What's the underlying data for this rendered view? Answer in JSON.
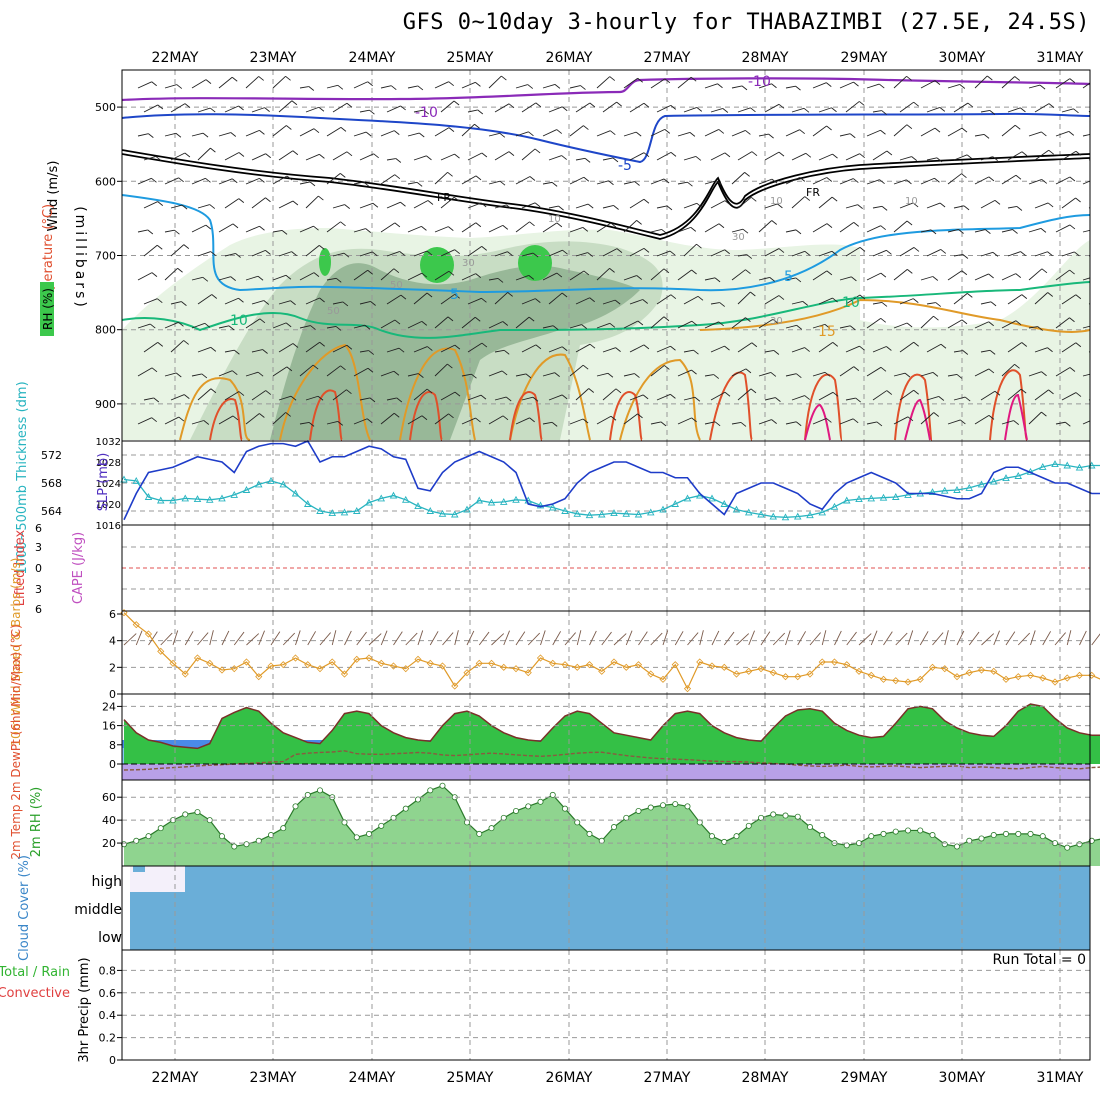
{
  "title": "GFS 0~10day 3-hourly for THABAZIMBI (27.5E, 24.5S)",
  "date_labels": [
    "22MAY",
    "23MAY",
    "24MAY",
    "25MAY",
    "26MAY",
    "27MAY",
    "28MAY",
    "29MAY",
    "30MAY",
    "31MAY"
  ],
  "colors": {
    "rh_light": "#e8f4e4",
    "rh_mid": "#c8ddc4",
    "rh_dark": "#98b898",
    "rh_green": "#3cc84c",
    "isotherm_m10": "#8a2ab8",
    "isotherm_m5": "#1e46c8",
    "isotherm_5": "#1e9be0",
    "isotherm_10": "#18b87a",
    "isotherm_15": "#e09a28",
    "isotherm_20": "#e0502a",
    "isotherm_25": "#e01880",
    "freezing": "#000000",
    "slp": "#1e3cc8",
    "thickness": "#28b4c0",
    "wind10m": "#e09a28",
    "cloud": "#6aaed8",
    "rh2m": "#32b432"
  },
  "chart_data": [
    {
      "type": "area",
      "panel": "upper-air",
      "xlabel": "",
      "ylabel": "(millibars)",
      "ylim": [
        950,
        450
      ],
      "yticks": [
        500,
        600,
        700,
        800,
        900
      ],
      "legend_labels": [
        "Wind (m/s)",
        "Temperature (°C)",
        "RH (%)"
      ],
      "contour_labels": [
        "-10",
        "-10",
        "-5",
        "FR",
        "FR",
        "10",
        "10",
        "10",
        "30",
        "30",
        "30",
        "50",
        "50",
        "5",
        "5",
        "10",
        "10",
        "15"
      ]
    },
    {
      "type": "line",
      "panel": "slp-thickness",
      "left_axis_label": "1000~500mb Thickness (dm)",
      "right_axis_label": "SLP (mb)",
      "left_ticks": [
        "572",
        "568",
        "564"
      ],
      "right_ticks": [
        "1032",
        "1028",
        "1024",
        "1020",
        "1016"
      ],
      "series": [
        {
          "name": "SLP (mb)",
          "values": [
            1017,
            1022,
            1026,
            1026.5,
            1027,
            1028,
            1029,
            1028.5,
            1028,
            1026,
            1030,
            1031,
            1031.5,
            1031.5,
            1031,
            1032,
            1028,
            1029,
            1029,
            1030,
            1031,
            1030.5,
            1029,
            1028.5,
            1023,
            1022.5,
            1026,
            1028,
            1029,
            1030,
            1029,
            1028,
            1026,
            1020,
            1019.5,
            1020,
            1021,
            1024,
            1026,
            1027,
            1028,
            1028,
            1027,
            1026,
            1026,
            1025,
            1025,
            1022,
            1020,
            1018,
            1022,
            1023,
            1024,
            1024,
            1023,
            1022,
            1020,
            1019,
            1022,
            1024,
            1025,
            1026,
            1025,
            1024,
            1022,
            1022,
            1022,
            1021.5,
            1021,
            1021,
            1022,
            1026,
            1027,
            1027,
            1026,
            1025,
            1024,
            1024,
            1023,
            1022,
            1022,
            1021,
            1022,
            1023,
            1024.5,
            1025,
            1025,
            1024,
            1023,
            1021,
            1020,
            1020,
            1019,
            1017,
            1017.5,
            1019,
            1020,
            1020,
            1020,
            1020,
            1020,
            1022,
            1024
          ]
        },
        {
          "name": "Thickness (dm)",
          "values": [
            568.5,
            568.3,
            566,
            565.5,
            565.5,
            565.8,
            565.7,
            565.6,
            565.8,
            566.3,
            567,
            567.8,
            568.3,
            567.8,
            566.5,
            565,
            564,
            563.7,
            563.8,
            564,
            565.2,
            565.8,
            566.2,
            565.6,
            564.7,
            564,
            563.6,
            563.5,
            564.2,
            565.5,
            565.2,
            565.3,
            565.6,
            565.5,
            564.8,
            564.5,
            564,
            563.6,
            563.4,
            563.5,
            563.7,
            563.6,
            563.5,
            563.8,
            564.2,
            565,
            565.8,
            566.2,
            565.8,
            565,
            564.2,
            563.8,
            563.5,
            563.2,
            563.1,
            563.2,
            563.4,
            563.8,
            564.6,
            565.5,
            565.7,
            565.8,
            565.9,
            566,
            566.3,
            566.5,
            566.7,
            566.9,
            567,
            567.3,
            567.8,
            568.2,
            568.7,
            569,
            569.6,
            570.3,
            570.7,
            570.5,
            570.2,
            570.5,
            570.5,
            570.8,
            570.6,
            570.2,
            570,
            570.2,
            571,
            571.6,
            571.6,
            571.1,
            570.7,
            570.5,
            570.8,
            570.8,
            571.4,
            571.8,
            572.2,
            572,
            571.5,
            571.2,
            571,
            570.6,
            570.3
          ]
        }
      ]
    },
    {
      "type": "line",
      "panel": "stability",
      "left_axis_label": "Lifted Index",
      "right_axis_label": "CAPE (J/kg)",
      "left_ticks": [
        "6",
        "3",
        "0",
        "3",
        "6"
      ],
      "note_zero_line": true
    },
    {
      "type": "line",
      "panel": "wind10m",
      "ylabel": "10m Wind Speed & Barbs (m/s)",
      "ylim": [
        0,
        6
      ],
      "yticks": [
        0,
        2,
        4,
        6
      ],
      "series": [
        {
          "name": "10m Wind Speed",
          "values": [
            6.1,
            5.2,
            4.5,
            3.2,
            2.3,
            1.5,
            2.7,
            2.3,
            1.8,
            1.9,
            2.4,
            1.3,
            2.1,
            2.2,
            2.7,
            2.2,
            1.9,
            2.4,
            1.5,
            2.6,
            2.7,
            2.3,
            2.1,
            1.9,
            2.6,
            2.3,
            2.1,
            0.6,
            1.6,
            2.3,
            2.3,
            2.0,
            1.9,
            1.6,
            2.7,
            2.3,
            2.2,
            2.0,
            2.2,
            1.7,
            2.4,
            2.0,
            2.2,
            1.5,
            1.1,
            2.2,
            0.4,
            2.4,
            2.1,
            2.0,
            1.5,
            1.7,
            1.9,
            1.6,
            1.3,
            1.3,
            1.5,
            2.4,
            2.4,
            2.2,
            1.7,
            1.4,
            1.1,
            1.0,
            0.9,
            1.1,
            2.0,
            1.9,
            1.3,
            1.6,
            1.8,
            1.7,
            1.1,
            1.3,
            1.4,
            1.2,
            0.9,
            1.2,
            1.4,
            1.4,
            1.0,
            0.9,
            1.2,
            1.9,
            1.6,
            1.9,
            1.5,
            1.2,
            1.0,
            1.5,
            1.9,
            2.1,
            2.0,
            1.2,
            0.4,
            0.2,
            2.8,
            1.9,
            2.3,
            1.8,
            2.0,
            2.1,
            2.1
          ]
        }
      ]
    },
    {
      "type": "area",
      "panel": "temperature",
      "ylabel": "2m Temp 2m DewPt (6hr Min/Max) (°C)",
      "ylim": [
        -4,
        28
      ],
      "yticks": [
        0,
        8,
        16,
        24
      ],
      "series": [
        {
          "name": "2m Temp",
          "values": [
            18.5,
            13,
            10,
            9,
            7.5,
            7,
            6.5,
            8.5,
            19,
            21.5,
            23.5,
            22,
            17,
            13,
            11,
            9,
            8.5,
            14,
            21,
            22,
            21,
            16,
            13,
            11,
            10,
            9.5,
            16,
            21,
            22,
            20,
            16,
            13,
            11,
            10,
            9.5,
            15,
            20,
            22,
            21,
            17,
            13,
            12,
            11,
            10,
            16,
            21,
            22,
            21,
            16,
            13,
            11,
            10,
            9.5,
            15,
            20,
            22.5,
            23,
            22,
            17,
            14,
            12,
            11,
            11.5,
            17,
            23,
            24,
            23,
            18,
            15,
            13,
            12,
            11.5,
            16,
            22,
            25,
            24,
            19,
            15,
            13,
            12,
            12,
            18,
            26,
            27,
            26,
            21,
            17,
            15,
            14,
            13,
            19,
            26,
            27.5,
            26,
            21,
            17.5,
            16,
            15,
            14,
            14.5,
            16
          ]
        },
        {
          "name": "2m DewPt",
          "values": [
            -2.5,
            -2.4,
            -2.2,
            -1.8,
            -1.5,
            -1.2,
            -0.8,
            -0.5,
            -0.3,
            0,
            0.2,
            0.5,
            0.8,
            1,
            4,
            4.5,
            4.8,
            5,
            5.5,
            4.3,
            4.1,
            4.0,
            4.3,
            4.5,
            4.8,
            4.5,
            3.8,
            3.5,
            3.8,
            4.2,
            4.5,
            4.2,
            3.8,
            3.5,
            3.2,
            3.5,
            4,
            4.5,
            4.8,
            4.9,
            4.2,
            3.5,
            3,
            2.5,
            2.2,
            2,
            1.8,
            1.5,
            1.2,
            1,
            1,
            0.8,
            0.5,
            0.2,
            0,
            -0.5,
            -0.8,
            -1,
            -0.8,
            -0.5,
            -1,
            -1.2,
            -1,
            -0.8,
            -1.2,
            -1.5,
            -1.2,
            -1,
            -0.8,
            -1.5,
            -1.2,
            -1.5,
            -1.8,
            -2,
            -1.5,
            -1,
            -1.5,
            -1.8,
            -2,
            -1.5,
            -1.2,
            -1.5,
            -1.8,
            -1,
            -1.2,
            -1.5,
            -1.8,
            -1.4,
            -1.3,
            -1.5,
            -1.2,
            -1.5,
            -1,
            -1.2,
            -0.5,
            -0.8,
            -1,
            -0.8,
            -0.2,
            -0.5,
            -0.5,
            -0.2,
            0
          ]
        }
      ]
    },
    {
      "type": "area",
      "panel": "rh2m",
      "ylabel": "2m RH (%)",
      "ylim": [
        0,
        75
      ],
      "yticks": [
        20,
        40,
        60
      ],
      "series": [
        {
          "name": "2m RH",
          "values": [
            19,
            22,
            26,
            33,
            40,
            45,
            47,
            40,
            26,
            17,
            19,
            22,
            27,
            33,
            52,
            62,
            66,
            60,
            38,
            25,
            28,
            35,
            42,
            50,
            58,
            66,
            70,
            60,
            38,
            28,
            33,
            42,
            48,
            52,
            56,
            62,
            50,
            38,
            28,
            22,
            34,
            42,
            48,
            51,
            53,
            54,
            52,
            38,
            26,
            21,
            26,
            35,
            42,
            45,
            44,
            43,
            34,
            27,
            20,
            18,
            20,
            26,
            28,
            30,
            31,
            31,
            27,
            19,
            17,
            22,
            24,
            27,
            28,
            28,
            28,
            26,
            20,
            16,
            19,
            22,
            24,
            26,
            27,
            27,
            28,
            26,
            22,
            17,
            16,
            20,
            23,
            26,
            28,
            28,
            29,
            26,
            21,
            18,
            19,
            22,
            26,
            30,
            33,
            35,
            34
          ]
        }
      ]
    },
    {
      "type": "area",
      "panel": "cloud-cover",
      "ylabel": "Cloud Cover (%)",
      "yticks": [
        "high",
        "middle",
        "low"
      ]
    },
    {
      "type": "bar",
      "panel": "precip",
      "ylabel": "3hr Precip (mm)",
      "legend_labels": [
        "Total / Rain",
        "Convective"
      ],
      "ylim": [
        0,
        1.0
      ],
      "yticks": [
        "0",
        "0.2",
        "0.4",
        "0.6",
        "0.8"
      ],
      "run_total_label": "Run Total = 0"
    }
  ]
}
